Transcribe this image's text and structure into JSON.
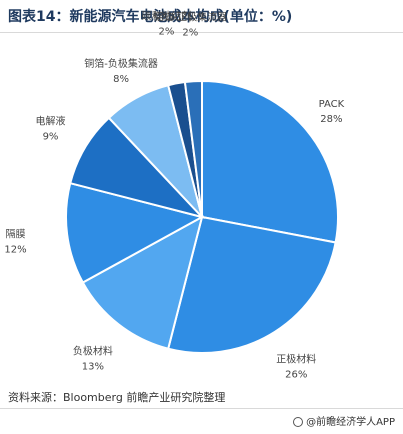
{
  "figure_title": "图表14：新能源汽车电池成本构成(单位：%)",
  "chart_data": {
    "type": "pie",
    "title": "图表14：新能源汽车电池成本构成(单位：%)",
    "slices": [
      {
        "label": "PACK",
        "value": 28,
        "value_label": "28%",
        "color": "#2f8de4"
      },
      {
        "label": "正极材料",
        "value": 26,
        "value_label": "26%",
        "color": "#2f8de4"
      },
      {
        "label": "负极材料",
        "value": 13,
        "value_label": "13%",
        "color": "#52a7f0"
      },
      {
        "label": "隔膜",
        "value": 12,
        "value_label": "12%",
        "color": "#2f8de4"
      },
      {
        "label": "电解液",
        "value": 9,
        "value_label": "9%",
        "color": "#1d6fc4"
      },
      {
        "label": "铜箔-负极集流器",
        "value": 8,
        "value_label": "8%",
        "color": "#7cbcf2"
      },
      {
        "label": "碳和粘结剂",
        "value": 2,
        "value_label": "2%",
        "color": "#1a4f8f"
      },
      {
        "label": "铝箔-正极集流器",
        "value": 2,
        "value_label": "2%",
        "color": "#2a6fb8"
      }
    ]
  },
  "footer": {
    "source": "资料来源：Bloomberg 前瞻产业研究院整理",
    "brand": "@前瞻经济学人APP"
  }
}
